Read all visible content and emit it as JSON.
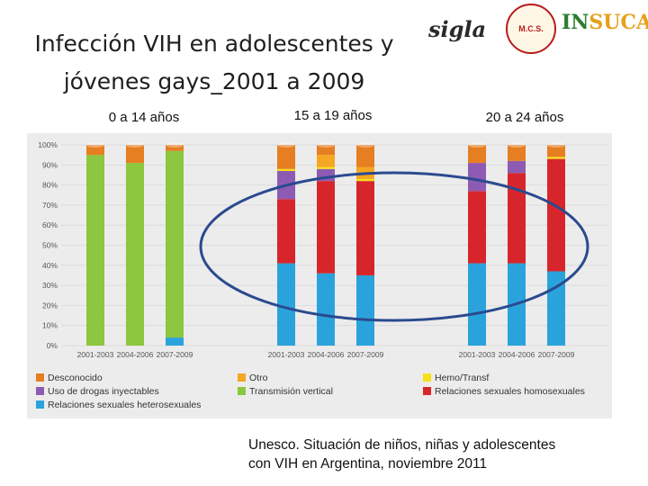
{
  "slide": {
    "title_line1": "Infección VIH en adolescentes y",
    "title_line2": "jóvenes gays_2001 a 2009",
    "source_line1": "Unesco. Situación de niños, niñas y adolescentes",
    "source_line2": "con VIH en Argentina, noviembre 2011"
  },
  "logos": {
    "sigla": "sigla",
    "mcs": "M.C.S.",
    "insucap_a": "IN",
    "insucap_b": "SUCAP"
  },
  "colors": {
    "desconocido": "#e67e22",
    "otro": "#f5a623",
    "hemo": "#f7e017",
    "drogas": "#8e5bb3",
    "vertical": "#8dc63f",
    "homo": "#d7262b",
    "hetero": "#2aa3dc",
    "ellipse": "#2b4a8f"
  },
  "chart_data": {
    "type": "bar",
    "stacked": true,
    "ylim": [
      0,
      100
    ],
    "yticks": [
      "0%",
      "10%",
      "20%",
      "30%",
      "40%",
      "50%",
      "60%",
      "70%",
      "80%",
      "90%",
      "100%"
    ],
    "groups": [
      {
        "label": "0 a 14 años",
        "categories": [
          "2001-2003",
          "2004-2006",
          "2007-2009"
        ]
      },
      {
        "label": "15 a 19 años",
        "categories": [
          "2001-2003",
          "2004-2006",
          "2007-2009"
        ]
      },
      {
        "label": "20 a 24 años",
        "categories": [
          "2001-2003",
          "2004-2006",
          "2007-2009"
        ]
      }
    ],
    "series": [
      {
        "name": "Relaciones sexuales heterosexuales",
        "key": "hetero",
        "values": [
          0,
          0,
          4,
          41,
          36,
          35,
          41,
          41,
          37
        ]
      },
      {
        "name": "Transmisión vertical",
        "key": "vertical",
        "values": [
          95,
          91,
          93,
          0,
          0,
          0,
          0,
          0,
          0
        ]
      },
      {
        "name": "Relaciones sexuales homosexuales",
        "key": "homo",
        "values": [
          0,
          0,
          0,
          32,
          46,
          47,
          36,
          45,
          56
        ]
      },
      {
        "name": "Uso de drogas inyectables",
        "key": "drogas",
        "values": [
          0,
          0,
          0,
          14,
          6,
          0,
          14,
          6,
          0
        ]
      },
      {
        "name": "Hemo/Transf",
        "key": "hemo",
        "values": [
          0,
          0,
          0,
          1,
          1,
          1,
          0,
          0,
          1
        ]
      },
      {
        "name": "Otro",
        "key": "otro",
        "values": [
          0,
          0,
          0,
          0,
          6,
          6,
          0,
          0,
          0
        ]
      },
      {
        "name": "Desconocido",
        "key": "desconocido",
        "values": [
          5,
          9,
          3,
          12,
          5,
          11,
          9,
          8,
          6
        ]
      }
    ],
    "legend": [
      {
        "name": "Desconocido",
        "key": "desconocido"
      },
      {
        "name": "Otro",
        "key": "otro"
      },
      {
        "name": "Hemo/Transf",
        "key": "hemo"
      },
      {
        "name": "Uso de drogas inyectables",
        "key": "drogas"
      },
      {
        "name": "Transmisión vertical",
        "key": "vertical"
      },
      {
        "name": "Relaciones sexuales homosexuales",
        "key": "homo"
      },
      {
        "name": "Relaciones sexuales heterosexuales",
        "key": "hetero"
      }
    ],
    "legend_position": "bottom"
  }
}
